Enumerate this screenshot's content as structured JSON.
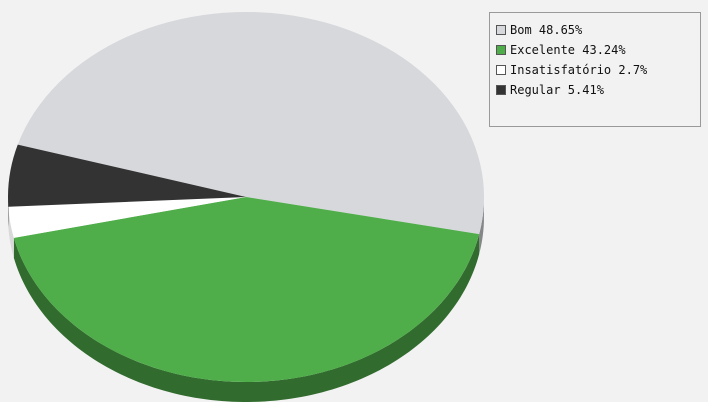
{
  "chart_data": {
    "type": "pie",
    "title": "",
    "slices": [
      {
        "label": "Bom",
        "value": 48.65,
        "legend": "Bom 48.65%",
        "color": "#d7d8dc"
      },
      {
        "label": "Excelente",
        "value": 43.24,
        "legend": "Excelente 43.24%",
        "color": "#4fae4a"
      },
      {
        "label": "Insatisfatório",
        "value": 2.7,
        "legend": "Insatisfatório 2.7%",
        "color": "#ffffff"
      },
      {
        "label": "Regular",
        "value": 5.41,
        "legend": "Regular 5.41%",
        "color": "#333333"
      }
    ],
    "legend_position": "top-right",
    "style": "3d-pie"
  },
  "legend": {
    "items": [
      {
        "text": "Bom 48.65%",
        "color": "#d7d8dc"
      },
      {
        "text": "Excelente 43.24%",
        "color": "#4fae4a"
      },
      {
        "text": "Insatisfatório 2.7%",
        "color": "#ffffff"
      },
      {
        "text": "Regular 5.41%",
        "color": "#333333"
      }
    ]
  }
}
